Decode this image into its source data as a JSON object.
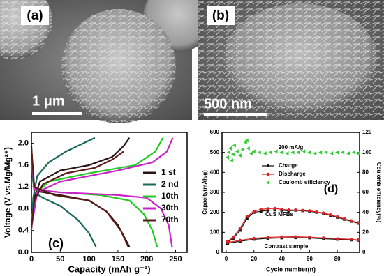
{
  "images": {
    "a": {
      "label": "(a)",
      "scale": "1 μm"
    },
    "b": {
      "label": "(b)",
      "scale": "500 nm"
    }
  },
  "chart_data": [
    {
      "type": "line",
      "xlabel": "Capacity (mAh g⁻¹)",
      "ylabel": "Voltage (V vs.Mg/Mg²⁺)",
      "annotations": [
        "(c)"
      ],
      "xlim": [
        0,
        270
      ],
      "xticks": [
        0,
        50,
        100,
        150,
        200,
        250
      ],
      "ylim": [
        0,
        2.2
      ],
      "yticks": [
        {
          "value": 0,
          "label": "0.0"
        },
        0.4,
        0.8,
        1.2,
        1.6,
        {
          "value": 2,
          "label": "2.0"
        }
      ],
      "legend": "right",
      "series": [
        {
          "name": "1 st",
          "color": "#2a1414",
          "x": [
            0,
            3,
            10,
            50,
            100,
            130,
            150,
            165,
            170,
            null,
            0,
            5,
            15,
            50,
            100,
            140,
            160,
            170
          ],
          "values": [
            1.95,
            1.3,
            1.12,
            1.05,
            0.95,
            0.75,
            0.5,
            0.2,
            0.1,
            null,
            0.5,
            1.0,
            1.3,
            1.5,
            1.6,
            1.75,
            1.95,
            2.1
          ]
        },
        {
          "name": "2 nd",
          "color": "#1a6a5a",
          "x": [
            0,
            5,
            20,
            50,
            80,
            100,
            112,
            null,
            0,
            3,
            10,
            30,
            60,
            90,
            110
          ],
          "values": [
            1.6,
            1.1,
            1.0,
            0.85,
            0.6,
            0.35,
            0.1,
            null,
            0.4,
            1.0,
            1.4,
            1.65,
            1.85,
            2.0,
            2.1
          ]
        },
        {
          "name": "10th",
          "color": "#22cc22",
          "x": [
            0,
            5,
            50,
            120,
            170,
            195,
            210,
            218,
            null,
            0,
            10,
            30,
            100,
            180,
            215,
            228
          ],
          "values": [
            1.8,
            1.15,
            1.1,
            1.05,
            0.95,
            0.7,
            0.4,
            0.1,
            null,
            0.6,
            1.1,
            1.3,
            1.45,
            1.6,
            1.85,
            2.1
          ]
        },
        {
          "name": "30th",
          "color": "#cc22cc",
          "x": [
            0,
            5,
            50,
            150,
            200,
            225,
            238,
            244,
            null,
            0,
            10,
            50,
            150,
            210,
            235,
            245
          ],
          "values": [
            1.8,
            1.15,
            1.1,
            1.05,
            1.0,
            0.8,
            0.5,
            0.1,
            null,
            0.45,
            1.1,
            1.3,
            1.5,
            1.65,
            1.85,
            2.1
          ]
        },
        {
          "name": "70th",
          "color": "#5a1a1a",
          "x": [
            0,
            5,
            40,
            100,
            130,
            155,
            168,
            null,
            0,
            5,
            20,
            60,
            110,
            140,
            160
          ],
          "values": [
            1.9,
            1.2,
            1.05,
            0.95,
            0.75,
            0.4,
            0.1,
            null,
            0.45,
            0.95,
            1.25,
            1.45,
            1.55,
            1.7,
            1.85
          ]
        }
      ]
    },
    {
      "type": "line",
      "title": "200 mA/g",
      "xlabel": "Cycle number(n)",
      "ylabel": "Capacity(mAh/g)",
      "y2label": "Coulomb efficiency(%)",
      "annotations": [
        "(d)",
        "CuS MFBs",
        "Contrast sample"
      ],
      "xlim": [
        -3,
        96
      ],
      "xticks": [
        0,
        20,
        40,
        60,
        80
      ],
      "ylim": [
        0,
        600
      ],
      "yticks": [
        0,
        100,
        200,
        300,
        400,
        500,
        600
      ],
      "y2lim": [
        0,
        120
      ],
      "y2ticks": [
        0,
        20,
        40,
        60,
        80,
        100,
        120
      ],
      "legend": "center",
      "series": [
        {
          "name": "Charge",
          "color": "#111111",
          "marker": "square",
          "x": [
            1,
            5,
            10,
            15,
            20,
            25,
            30,
            35,
            40,
            45,
            50,
            55,
            60,
            65,
            70,
            75,
            80,
            85,
            90,
            95,
            null,
            1,
            10,
            20,
            30,
            40,
            50,
            60,
            70,
            80,
            90,
            95
          ],
          "values": [
            50,
            70,
            110,
            170,
            200,
            205,
            210,
            212,
            210,
            208,
            210,
            208,
            205,
            200,
            195,
            185,
            175,
            165,
            155,
            145,
            null,
            45,
            55,
            65,
            70,
            72,
            73,
            72,
            68,
            65,
            62,
            60
          ]
        },
        {
          "name": "Discharge",
          "color": "#dd2222",
          "marker": "circle",
          "x": [
            1,
            5,
            10,
            15,
            20,
            25,
            30,
            35,
            40,
            45,
            50,
            55,
            60,
            65,
            70,
            75,
            80,
            85,
            90,
            95,
            null,
            1,
            10,
            20,
            30,
            40,
            50,
            60,
            70,
            80,
            90,
            95
          ],
          "values": [
            55,
            75,
            120,
            180,
            205,
            215,
            218,
            220,
            215,
            212,
            212,
            210,
            208,
            202,
            197,
            188,
            178,
            168,
            158,
            148,
            null,
            50,
            60,
            70,
            75,
            77,
            78,
            76,
            72,
            68,
            65,
            62
          ]
        },
        {
          "name": "Coulomb efficiency",
          "color": "#33cc33",
          "marker": "triangle",
          "line": false,
          "axis": "y2",
          "x": [
            1,
            2,
            3,
            4,
            5,
            6,
            8,
            10,
            12,
            14,
            15,
            16,
            18,
            20,
            24,
            28,
            32,
            36,
            40,
            44,
            48,
            52,
            56,
            60,
            64,
            68,
            72,
            76,
            80,
            84,
            88,
            92,
            95
          ],
          "values": [
            95,
            100,
            104,
            92,
            98,
            107,
            101,
            97,
            103,
            110,
            112,
            104,
            99,
            101,
            100,
            99,
            100,
            101,
            100,
            99,
            100,
            100,
            101,
            100,
            99,
            100,
            100,
            99,
            100,
            100,
            99,
            100,
            99
          ]
        }
      ]
    }
  ]
}
